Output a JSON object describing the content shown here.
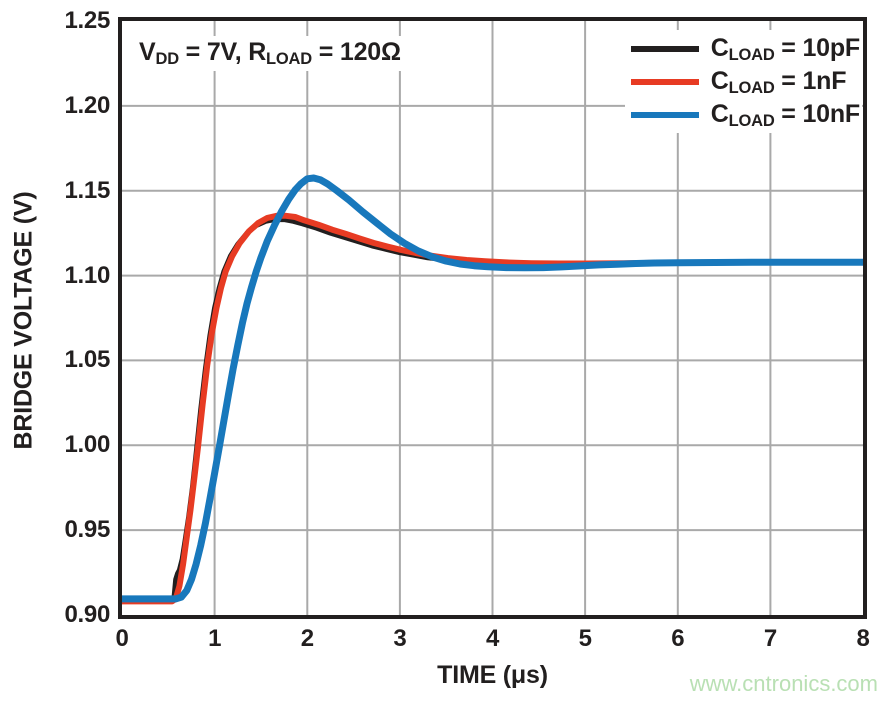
{
  "watermark": {
    "text": "www.cntronics.com",
    "color": "#b9e0b4"
  },
  "frame_color": "#221f1f",
  "chart_data": {
    "type": "line",
    "title": "",
    "xlabel": "TIME (μs)",
    "ylabel": "BRIDGE VOLTAGE (V)",
    "xlim": [
      0,
      8
    ],
    "ylim": [
      0.9,
      1.25
    ],
    "grid": true,
    "grid_color": "#a9a9a9",
    "x_ticks": [
      0,
      1,
      2,
      3,
      4,
      5,
      6,
      7,
      8
    ],
    "x_tick_labels": [
      "0",
      "1",
      "2",
      "3",
      "4",
      "5",
      "6",
      "7",
      "8"
    ],
    "y_ticks": [
      1.25,
      1.2,
      1.15,
      1.1,
      1.05,
      1.0,
      0.95,
      0.9
    ],
    "y_tick_labels": [
      "1.25",
      "1.20",
      "1.15",
      "1.10",
      "1.05",
      "1.00",
      "0.95",
      "0.90"
    ],
    "annotation": {
      "text": "VDD = 7V, RLOAD = 120Ω",
      "p1": "V",
      "p2": "DD",
      "p3": " = 7V, R",
      "p4": "LOAD",
      "p5": " = 120Ω"
    },
    "legend_position": "top-right",
    "series": [
      {
        "id": "cload-10pf",
        "name": "CLOAD = 10pF",
        "label_sym": "C",
        "label_sub": "LOAD",
        "label_val": " = 10pF",
        "color": "#221f1f",
        "stroke_width": 5,
        "points": [
          [
            0,
            0.9085
          ],
          [
            0.3,
            0.9085
          ],
          [
            0.52,
            0.9085
          ],
          [
            0.56,
            0.9095
          ],
          [
            0.58,
            0.921
          ],
          [
            0.6,
            0.9245
          ],
          [
            0.62,
            0.9265
          ],
          [
            0.65,
            0.933
          ],
          [
            0.68,
            0.9435
          ],
          [
            0.72,
            0.958
          ],
          [
            0.76,
            0.975
          ],
          [
            0.8,
            0.995
          ],
          [
            0.85,
            1.021
          ],
          [
            0.9,
            1.045
          ],
          [
            0.95,
            1.065
          ],
          [
            1.0,
            1.081
          ],
          [
            1.05,
            1.093
          ],
          [
            1.1,
            1.1025
          ],
          [
            1.17,
            1.1115
          ],
          [
            1.25,
            1.1185
          ],
          [
            1.35,
            1.125
          ],
          [
            1.45,
            1.1295
          ],
          [
            1.55,
            1.132
          ],
          [
            1.65,
            1.133
          ],
          [
            1.75,
            1.133
          ],
          [
            1.85,
            1.132
          ],
          [
            1.95,
            1.1305
          ],
          [
            2.1,
            1.128
          ],
          [
            2.25,
            1.125
          ],
          [
            2.4,
            1.1225
          ],
          [
            2.55,
            1.12
          ],
          [
            2.7,
            1.1175
          ],
          [
            2.85,
            1.1155
          ],
          [
            3.0,
            1.1135
          ],
          [
            3.15,
            1.112
          ],
          [
            3.3,
            1.1105
          ],
          [
            3.5,
            1.1093
          ],
          [
            3.7,
            1.1083
          ],
          [
            3.9,
            1.1077
          ],
          [
            4.1,
            1.1072
          ],
          [
            4.4,
            1.1068
          ],
          [
            4.7,
            1.1068
          ],
          [
            5.0,
            1.1069
          ],
          [
            5.4,
            1.1072
          ],
          [
            5.8,
            1.1075
          ],
          [
            6.2,
            1.1076
          ],
          [
            6.6,
            1.1077
          ],
          [
            7.0,
            1.1078
          ],
          [
            7.5,
            1.1078
          ],
          [
            8.0,
            1.1079
          ]
        ]
      },
      {
        "id": "cload-1nf",
        "name": "CLOAD = 1nF",
        "label_sym": "C",
        "label_sub": "LOAD",
        "label_val": " = 1nF",
        "color": "#e73b23",
        "stroke_width": 6,
        "points": [
          [
            0,
            0.908
          ],
          [
            0.3,
            0.908
          ],
          [
            0.54,
            0.908
          ],
          [
            0.58,
            0.9095
          ],
          [
            0.62,
            0.917
          ],
          [
            0.66,
            0.93
          ],
          [
            0.7,
            0.946
          ],
          [
            0.74,
            0.962
          ],
          [
            0.78,
            0.98
          ],
          [
            0.82,
            0.999
          ],
          [
            0.87,
            1.024
          ],
          [
            0.92,
            1.047
          ],
          [
            0.97,
            1.066
          ],
          [
            1.02,
            1.081
          ],
          [
            1.07,
            1.093
          ],
          [
            1.12,
            1.1025
          ],
          [
            1.19,
            1.1115
          ],
          [
            1.27,
            1.119
          ],
          [
            1.37,
            1.126
          ],
          [
            1.47,
            1.131
          ],
          [
            1.57,
            1.134
          ],
          [
            1.67,
            1.1352
          ],
          [
            1.77,
            1.1352
          ],
          [
            1.87,
            1.1345
          ],
          [
            1.97,
            1.1325
          ],
          [
            2.12,
            1.13
          ],
          [
            2.27,
            1.127
          ],
          [
            2.42,
            1.1245
          ],
          [
            2.57,
            1.1218
          ],
          [
            2.72,
            1.1192
          ],
          [
            2.87,
            1.117
          ],
          [
            3.02,
            1.115
          ],
          [
            3.17,
            1.1133
          ],
          [
            3.32,
            1.1118
          ],
          [
            3.52,
            1.1103
          ],
          [
            3.72,
            1.1092
          ],
          [
            3.92,
            1.1084
          ],
          [
            4.12,
            1.1078
          ],
          [
            4.42,
            1.1073
          ],
          [
            4.72,
            1.1071
          ],
          [
            5.02,
            1.1071
          ],
          [
            5.42,
            1.1073
          ],
          [
            5.82,
            1.1075
          ],
          [
            6.22,
            1.1077
          ],
          [
            6.62,
            1.1078
          ],
          [
            7.02,
            1.1078
          ],
          [
            7.52,
            1.1079
          ],
          [
            8.0,
            1.1079
          ]
        ]
      },
      {
        "id": "cload-10nf",
        "name": "CLOAD = 10nF",
        "label_sym": "C",
        "label_sub": "LOAD",
        "label_val": " = 10nF",
        "color": "#1878bc",
        "stroke_width": 7,
        "points": [
          [
            0,
            0.9095
          ],
          [
            0.3,
            0.9095
          ],
          [
            0.58,
            0.9095
          ],
          [
            0.64,
            0.9105
          ],
          [
            0.7,
            0.9145
          ],
          [
            0.75,
            0.921
          ],
          [
            0.8,
            0.93
          ],
          [
            0.85,
            0.941
          ],
          [
            0.9,
            0.954
          ],
          [
            0.95,
            0.9685
          ],
          [
            1.0,
            0.9835
          ],
          [
            1.05,
            0.999
          ],
          [
            1.1,
            1.0145
          ],
          [
            1.15,
            1.03
          ],
          [
            1.2,
            1.045
          ],
          [
            1.25,
            1.059
          ],
          [
            1.3,
            1.072
          ],
          [
            1.35,
            1.0835
          ],
          [
            1.4,
            1.0935
          ],
          [
            1.45,
            1.1025
          ],
          [
            1.5,
            1.1105
          ],
          [
            1.57,
            1.1205
          ],
          [
            1.65,
            1.13
          ],
          [
            1.72,
            1.1375
          ],
          [
            1.8,
            1.145
          ],
          [
            1.87,
            1.1505
          ],
          [
            1.93,
            1.154
          ],
          [
            2.0,
            1.157
          ],
          [
            2.07,
            1.1575
          ],
          [
            2.14,
            1.1565
          ],
          [
            2.22,
            1.154
          ],
          [
            2.32,
            1.15
          ],
          [
            2.45,
            1.1445
          ],
          [
            2.6,
            1.1375
          ],
          [
            2.75,
            1.131
          ],
          [
            2.9,
            1.1245
          ],
          [
            3.05,
            1.119
          ],
          [
            3.2,
            1.1145
          ],
          [
            3.35,
            1.111
          ],
          [
            3.5,
            1.1085
          ],
          [
            3.65,
            1.1068
          ],
          [
            3.8,
            1.1058
          ],
          [
            3.95,
            1.1052
          ],
          [
            4.15,
            1.1047
          ],
          [
            4.35,
            1.1046
          ],
          [
            4.55,
            1.1047
          ],
          [
            4.75,
            1.1051
          ],
          [
            4.95,
            1.1057
          ],
          [
            5.15,
            1.1063
          ],
          [
            5.35,
            1.1067
          ],
          [
            5.55,
            1.1071
          ],
          [
            5.75,
            1.1074
          ],
          [
            6.0,
            1.1076
          ],
          [
            6.4,
            1.1077
          ],
          [
            6.8,
            1.1078
          ],
          [
            7.2,
            1.1078
          ],
          [
            7.6,
            1.1078
          ],
          [
            8.0,
            1.1079
          ]
        ]
      }
    ]
  }
}
